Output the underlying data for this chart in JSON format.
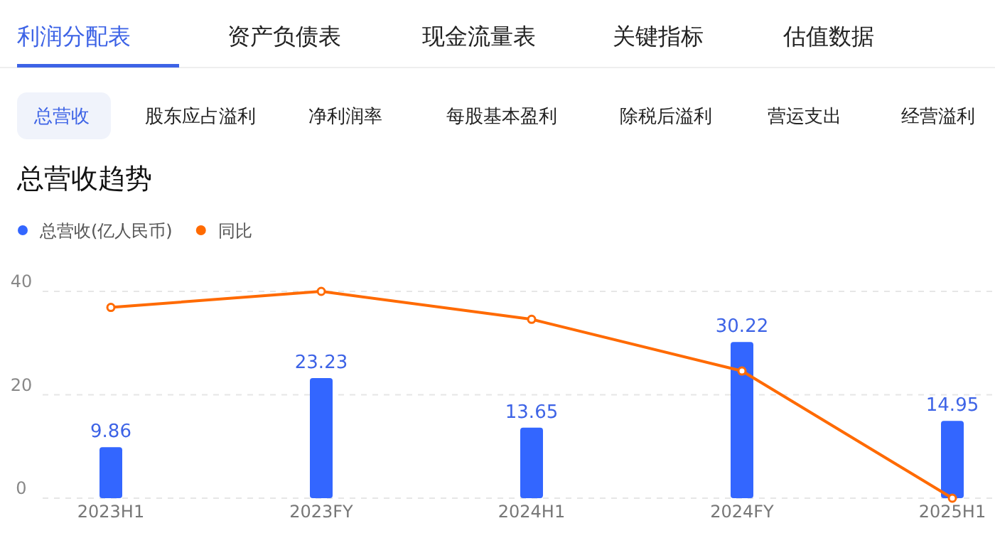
{
  "chart_data": {
    "type": "bar",
    "title": "总营收趋势",
    "annotations": [
      "利润分配表",
      "资产负债表",
      "现金流量表",
      "关键指标",
      "估值数据",
      "总营收",
      "股东应占溢利",
      "净利润率",
      "每股基本盈利",
      "除税后溢利",
      "营运支出",
      "经营溢利"
    ],
    "categories": [
      "2023H1",
      "2023FY",
      "2024H1",
      "2024FY",
      "2025H1"
    ],
    "series": [
      {
        "name": "总营收(亿人民币)",
        "color": "#3366ff",
        "values": [
          9.86,
          23.23,
          13.65,
          30.22,
          14.95
        ],
        "value_labels": [
          "9.86",
          "23.23",
          "13.65",
          "30.22",
          "14.95"
        ]
      },
      {
        "name": "同比",
        "type": "line",
        "color": "#ff6a00",
        "values": [
          36.9,
          40,
          34.6,
          24.6,
          0
        ]
      }
    ],
    "ylim": [
      0,
      40
    ],
    "yticks": [
      0,
      20,
      40
    ],
    "grid": "y",
    "legend": "top left",
    "marker": "circle",
    "line_style": "solid"
  }
}
